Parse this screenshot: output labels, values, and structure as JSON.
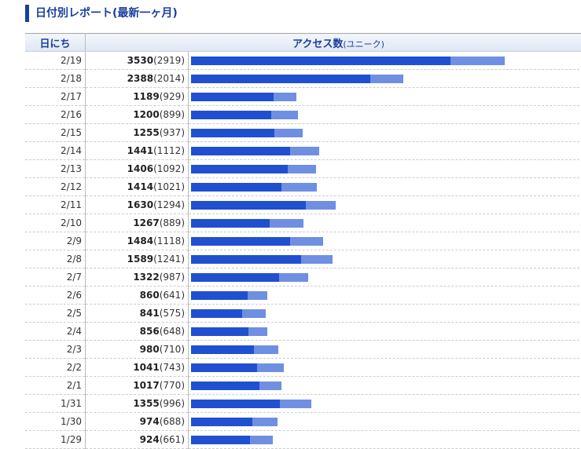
{
  "title": "日付別レポート(最新一ヶ月)",
  "header": {
    "date": "日にち",
    "access": "アクセス数",
    "unique": "(ユニーク)"
  },
  "colors": {
    "total": "#6f8fe3",
    "unique": "#2050d0"
  },
  "chart_data": {
    "type": "bar",
    "orientation": "horizontal",
    "categories": [
      "2/19",
      "2/18",
      "2/17",
      "2/16",
      "2/15",
      "2/14",
      "2/13",
      "2/12",
      "2/11",
      "2/10",
      "2/9",
      "2/8",
      "2/7",
      "2/6",
      "2/5",
      "2/4",
      "2/3",
      "2/2",
      "2/1",
      "1/31",
      "1/30",
      "1/29"
    ],
    "series": [
      {
        "name": "アクセス数",
        "values": [
          3530,
          2388,
          1189,
          1200,
          1255,
          1441,
          1406,
          1414,
          1630,
          1267,
          1484,
          1589,
          1322,
          860,
          841,
          856,
          980,
          1041,
          1017,
          1355,
          974,
          924
        ]
      },
      {
        "name": "ユニーク",
        "values": [
          2919,
          2014,
          929,
          899,
          937,
          1112,
          1092,
          1021,
          1294,
          889,
          1118,
          1241,
          987,
          641,
          575,
          648,
          710,
          743,
          770,
          996,
          688,
          661
        ]
      }
    ]
  }
}
